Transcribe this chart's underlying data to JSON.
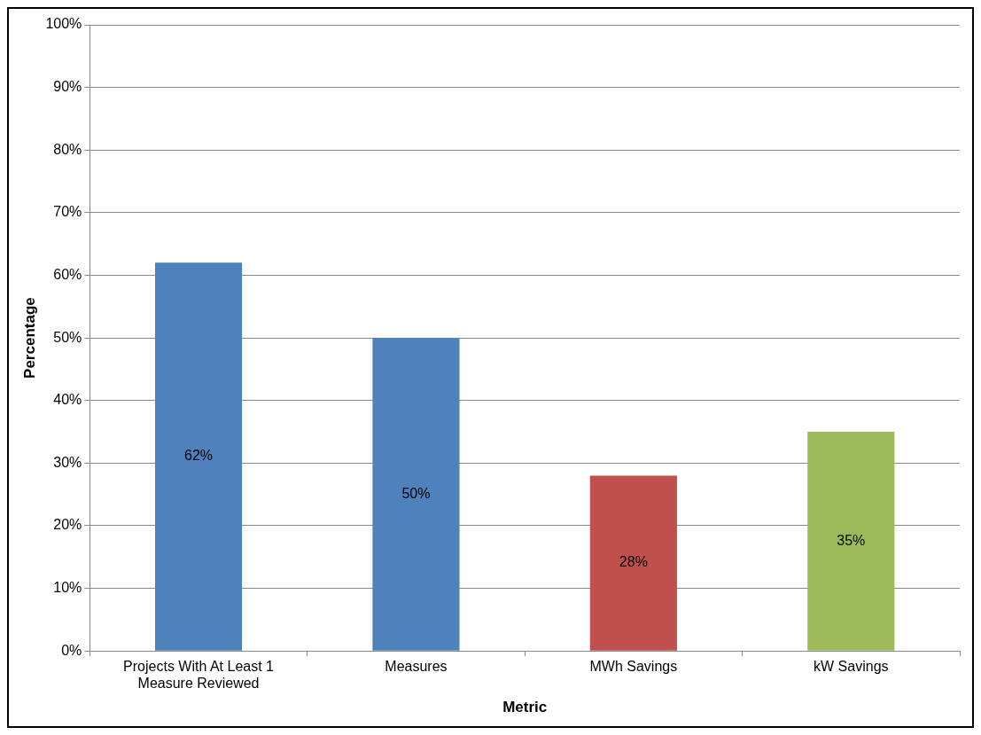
{
  "chart_data": {
    "type": "bar",
    "xlabel": "Metric",
    "ylabel": "Percentage",
    "categories": [
      "Projects With At Least 1 Measure Reviewed",
      "Measures",
      "MWh Savings",
      "kW Savings"
    ],
    "values": [
      62,
      50,
      28,
      35
    ],
    "colors": [
      "#4f81bd",
      "#4f81bd",
      "#c0504d",
      "#9bbb59"
    ],
    "value_labels": [
      "62%",
      "50%",
      "28%",
      "35%"
    ],
    "ylim": [
      0,
      100
    ],
    "yticks": [
      {
        "value": 0,
        "label": "0%"
      },
      {
        "value": 10,
        "label": "10%"
      },
      {
        "value": 20,
        "label": "20%"
      },
      {
        "value": 30,
        "label": "30%"
      },
      {
        "value": 40,
        "label": "40%"
      },
      {
        "value": 50,
        "label": "50%"
      },
      {
        "value": 60,
        "label": "60%"
      },
      {
        "value": 70,
        "label": "70%"
      },
      {
        "value": 80,
        "label": "80%"
      },
      {
        "value": 90,
        "label": "90%"
      },
      {
        "value": 100,
        "label": "100%"
      }
    ],
    "grid": "y",
    "legend": false
  }
}
